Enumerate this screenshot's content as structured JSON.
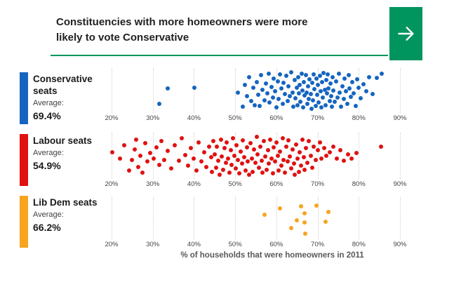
{
  "header": {
    "title_line1": "Constituencies with more homeowners were more",
    "title_line2": "likely to vote Conservative",
    "accent_color": "#00945F"
  },
  "nav": {
    "next_button_icon": "arrow-right"
  },
  "chart_data": {
    "type": "scatter",
    "title": "Constituencies with more homeowners were more likely to vote Conservative",
    "xlabel": "% of households that were homeowners in 2011",
    "x_axis": {
      "tick_values": [
        20,
        30,
        40,
        50,
        60,
        70,
        80,
        90
      ],
      "tick_labels": [
        "20%",
        "30%",
        "40%",
        "50%",
        "60%",
        "70%",
        "80%",
        "90%"
      ],
      "min": 20,
      "max": 90,
      "gridlines": "dotted-vertical"
    },
    "legend_position": "left-of-each-strip",
    "rows": [
      {
        "name": "Conservative seats",
        "average_label": "Average:",
        "average": "69.4%",
        "color": "#1565C0",
        "points": [
          [
            31.6,
            0.85
          ],
          [
            33.6,
            0.45
          ],
          [
            40.1,
            0.42
          ],
          [
            50.6,
            0.55
          ],
          [
            51.8,
            0.92
          ],
          [
            52.3,
            0.35
          ],
          [
            52.9,
            0.65
          ],
          [
            53.4,
            0.15
          ],
          [
            53.9,
            0.78
          ],
          [
            54.4,
            0.42
          ],
          [
            54.8,
            0.88
          ],
          [
            55.2,
            0.28
          ],
          [
            55.6,
            0.62
          ],
          [
            56.0,
            0.9
          ],
          [
            56.3,
            0.1
          ],
          [
            56.7,
            0.48
          ],
          [
            57.1,
            0.75
          ],
          [
            57.4,
            0.32
          ],
          [
            57.8,
            0.58
          ],
          [
            58.1,
            0.05
          ],
          [
            58.4,
            0.82
          ],
          [
            58.8,
            0.4
          ],
          [
            59.1,
            0.68
          ],
          [
            59.4,
            0.18
          ],
          [
            59.7,
            0.52
          ],
          [
            60.0,
            0.95
          ],
          [
            60.3,
            0.25
          ],
          [
            60.6,
            0.72
          ],
          [
            60.9,
            0.08
          ],
          [
            61.2,
            0.45
          ],
          [
            61.5,
            0.85
          ],
          [
            61.8,
            0.3
          ],
          [
            62.1,
            0.6
          ],
          [
            62.4,
            0.12
          ],
          [
            62.7,
            0.78
          ],
          [
            63.0,
            0.38
          ],
          [
            63.3,
            0.65
          ],
          [
            63.6,
            0.02
          ],
          [
            63.9,
            0.55
          ],
          [
            64.1,
            0.92
          ],
          [
            64.4,
            0.22
          ],
          [
            64.6,
            0.7
          ],
          [
            64.9,
            0.42
          ],
          [
            65.1,
            0.88
          ],
          [
            65.3,
            0.15
          ],
          [
            65.5,
            0.58
          ],
          [
            65.7,
            0.35
          ],
          [
            65.9,
            0.8
          ],
          [
            66.1,
            0.05
          ],
          [
            66.3,
            0.5
          ],
          [
            66.5,
            0.95
          ],
          [
            66.7,
            0.27
          ],
          [
            66.9,
            0.63
          ],
          [
            67.1,
            0.1
          ],
          [
            67.3,
            0.55
          ],
          [
            67.5,
            0.85
          ],
          [
            67.7,
            0.38
          ],
          [
            67.9,
            0.72
          ],
          [
            68.1,
            0.2
          ],
          [
            68.3,
            0.6
          ],
          [
            68.5,
            0.98
          ],
          [
            68.7,
            0.3
          ],
          [
            68.9,
            0.75
          ],
          [
            69.1,
            0.07
          ],
          [
            69.3,
            0.47
          ],
          [
            69.5,
            0.9
          ],
          [
            69.7,
            0.18
          ],
          [
            69.9,
            0.62
          ],
          [
            70.1,
            0.35
          ],
          [
            70.3,
            0.82
          ],
          [
            70.5,
            0.12
          ],
          [
            70.7,
            0.52
          ],
          [
            70.9,
            0.95
          ],
          [
            71.1,
            0.28
          ],
          [
            71.3,
            0.68
          ],
          [
            71.5,
            0.03
          ],
          [
            71.7,
            0.48
          ],
          [
            71.9,
            0.88
          ],
          [
            72.1,
            0.22
          ],
          [
            72.3,
            0.58
          ],
          [
            72.5,
            0.08
          ],
          [
            72.7,
            0.45
          ],
          [
            72.9,
            0.78
          ],
          [
            73.1,
            0.32
          ],
          [
            73.3,
            0.65
          ],
          [
            73.5,
            0.93
          ],
          [
            73.7,
            0.15
          ],
          [
            73.9,
            0.5
          ],
          [
            74.2,
            0.8
          ],
          [
            74.5,
            0.25
          ],
          [
            74.8,
            0.68
          ],
          [
            75.1,
            0.05
          ],
          [
            75.4,
            0.55
          ],
          [
            75.7,
            0.92
          ],
          [
            76.0,
            0.38
          ],
          [
            76.3,
            0.73
          ],
          [
            76.6,
            0.18
          ],
          [
            76.9,
            0.52
          ],
          [
            77.2,
            0.85
          ],
          [
            77.5,
            0.1
          ],
          [
            77.8,
            0.45
          ],
          [
            78.1,
            0.66
          ],
          [
            78.4,
            0.28
          ],
          [
            78.8,
            0.57
          ],
          [
            79.2,
            0.9
          ],
          [
            79.6,
            0.2
          ],
          [
            80.0,
            0.43
          ],
          [
            80.5,
            0.7
          ],
          [
            81.1,
            0.33
          ],
          [
            81.8,
            0.52
          ],
          [
            82.5,
            0.14
          ],
          [
            83.3,
            0.6
          ],
          [
            84.4,
            0.16
          ],
          [
            85.5,
            0.06
          ]
        ]
      },
      {
        "name": "Labour seats",
        "average_label": "Average:",
        "average": "54.9%",
        "color": "#E01111",
        "points": [
          [
            20.1,
            0.4
          ],
          [
            22.0,
            0.55
          ],
          [
            23.1,
            0.22
          ],
          [
            24.3,
            0.85
          ],
          [
            25.0,
            0.58
          ],
          [
            25.6,
            0.32
          ],
          [
            25.9,
            0.08
          ],
          [
            26.4,
            0.75
          ],
          [
            26.9,
            0.48
          ],
          [
            27.5,
            0.9
          ],
          [
            28.1,
            0.18
          ],
          [
            28.7,
            0.62
          ],
          [
            29.4,
            0.42
          ],
          [
            30.2,
            0.55
          ],
          [
            30.9,
            0.28
          ],
          [
            31.5,
            0.7
          ],
          [
            32.1,
            0.12
          ],
          [
            32.8,
            0.58
          ],
          [
            33.6,
            0.36
          ],
          [
            34.5,
            0.8
          ],
          [
            35.4,
            0.22
          ],
          [
            36.3,
            0.6
          ],
          [
            37.1,
            0.06
          ],
          [
            37.9,
            0.46
          ],
          [
            38.6,
            0.72
          ],
          [
            39.3,
            0.3
          ],
          [
            40.0,
            0.55
          ],
          [
            40.6,
            0.85
          ],
          [
            41.2,
            0.15
          ],
          [
            41.8,
            0.62
          ],
          [
            42.4,
            0.4
          ],
          [
            43.0,
            0.75
          ],
          [
            43.6,
            0.26
          ],
          [
            44.1,
            0.52
          ],
          [
            44.4,
            0.88
          ],
          [
            44.7,
            0.12
          ],
          [
            45.0,
            0.45
          ],
          [
            45.3,
            0.78
          ],
          [
            45.6,
            0.25
          ],
          [
            45.9,
            0.6
          ],
          [
            46.2,
            0.95
          ],
          [
            46.5,
            0.08
          ],
          [
            46.8,
            0.5
          ],
          [
            47.1,
            0.82
          ],
          [
            47.4,
            0.3
          ],
          [
            47.7,
            0.65
          ],
          [
            48.0,
            0.15
          ],
          [
            48.3,
            0.55
          ],
          [
            48.6,
            0.9
          ],
          [
            48.9,
            0.35
          ],
          [
            49.2,
            0.7
          ],
          [
            49.5,
            0.05
          ],
          [
            49.8,
            0.48
          ],
          [
            50.1,
            0.8
          ],
          [
            50.4,
            0.22
          ],
          [
            50.7,
            0.58
          ],
          [
            51.0,
            0.92
          ],
          [
            51.3,
            0.38
          ],
          [
            51.6,
            0.68
          ],
          [
            51.9,
            0.1
          ],
          [
            52.2,
            0.52
          ],
          [
            52.5,
            0.85
          ],
          [
            52.8,
            0.28
          ],
          [
            53.1,
            0.62
          ],
          [
            53.4,
            0.95
          ],
          [
            53.7,
            0.18
          ],
          [
            54.0,
            0.55
          ],
          [
            54.3,
            0.88
          ],
          [
            54.6,
            0.32
          ],
          [
            54.9,
            0.65
          ],
          [
            55.2,
            0.02
          ],
          [
            55.5,
            0.45
          ],
          [
            55.8,
            0.78
          ],
          [
            56.1,
            0.25
          ],
          [
            56.4,
            0.6
          ],
          [
            56.7,
            0.9
          ],
          [
            57.0,
            0.12
          ],
          [
            57.3,
            0.5
          ],
          [
            57.6,
            0.82
          ],
          [
            57.9,
            0.35
          ],
          [
            58.2,
            0.68
          ],
          [
            58.5,
            0.08
          ],
          [
            58.8,
            0.55
          ],
          [
            59.1,
            0.92
          ],
          [
            59.4,
            0.28
          ],
          [
            59.7,
            0.62
          ],
          [
            60.0,
            0.15
          ],
          [
            60.3,
            0.48
          ],
          [
            60.6,
            0.85
          ],
          [
            60.9,
            0.38
          ],
          [
            61.2,
            0.72
          ],
          [
            61.5,
            0.05
          ],
          [
            61.8,
            0.58
          ],
          [
            62.1,
            0.9
          ],
          [
            62.4,
            0.25
          ],
          [
            62.7,
            0.62
          ],
          [
            63.0,
            0.1
          ],
          [
            63.3,
            0.5
          ],
          [
            63.6,
            0.8
          ],
          [
            63.9,
            0.33
          ],
          [
            64.2,
            0.68
          ],
          [
            64.5,
            0.95
          ],
          [
            64.8,
            0.2
          ],
          [
            65.1,
            0.55
          ],
          [
            65.4,
            0.88
          ],
          [
            65.7,
            0.4
          ],
          [
            66.0,
            0.72
          ],
          [
            66.3,
            0.08
          ],
          [
            66.6,
            0.52
          ],
          [
            66.9,
            0.82
          ],
          [
            67.2,
            0.3
          ],
          [
            67.5,
            0.65
          ],
          [
            67.9,
            0.12
          ],
          [
            68.3,
            0.48
          ],
          [
            68.7,
            0.78
          ],
          [
            69.1,
            0.25
          ],
          [
            69.5,
            0.58
          ],
          [
            70.0,
            0.35
          ],
          [
            70.5,
            0.15
          ],
          [
            71.0,
            0.55
          ],
          [
            71.6,
            0.3
          ],
          [
            72.2,
            0.48
          ],
          [
            73.0,
            0.4
          ],
          [
            73.8,
            0.25
          ],
          [
            74.6,
            0.55
          ],
          [
            75.5,
            0.35
          ],
          [
            76.4,
            0.6
          ],
          [
            77.4,
            0.45
          ],
          [
            78.3,
            0.55
          ],
          [
            79.5,
            0.42
          ],
          [
            85.4,
            0.25
          ]
        ]
      },
      {
        "name": "Lib Dem seats",
        "average_label": "Average:",
        "average": "66.2%",
        "color": "#F7A41E",
        "points": [
          [
            57.1,
            0.38
          ],
          [
            60.9,
            0.21
          ],
          [
            63.6,
            0.75
          ],
          [
            64.9,
            0.53
          ],
          [
            66.0,
            0.16
          ],
          [
            66.8,
            0.35
          ],
          [
            66.9,
            0.59
          ],
          [
            67.0,
            0.91
          ],
          [
            69.7,
            0.13
          ],
          [
            72.0,
            0.57
          ],
          [
            72.6,
            0.31
          ]
        ]
      }
    ]
  }
}
